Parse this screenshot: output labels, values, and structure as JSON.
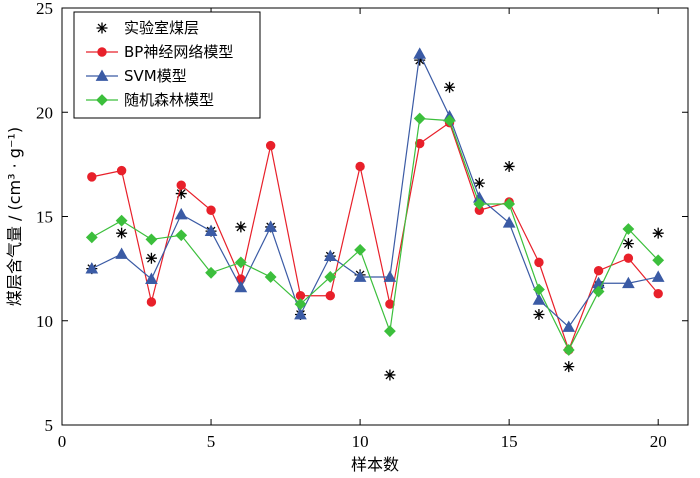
{
  "chart_data": {
    "type": "line",
    "xlabel": "样本数",
    "ylabel": "煤层含气量 / (cm³ · g⁻¹)",
    "xlim": [
      0,
      21
    ],
    "ylim": [
      5,
      25
    ],
    "xticks": [
      0,
      5,
      10,
      15,
      20
    ],
    "yticks": [
      5,
      10,
      15,
      20,
      25
    ],
    "xtick_labels": [
      "0",
      "5",
      "10",
      "15",
      "20"
    ],
    "ytick_labels": [
      "5",
      "10",
      "15",
      "20",
      "25"
    ],
    "grid": false,
    "legend_position": "top-left",
    "x": [
      1,
      2,
      3,
      4,
      5,
      6,
      7,
      8,
      9,
      10,
      11,
      12,
      13,
      14,
      15,
      16,
      17,
      18,
      19,
      20
    ],
    "series": [
      {
        "name": "实验室煤层",
        "style": "markers-only",
        "marker": "asterisk",
        "color": "#000000",
        "values": [
          12.5,
          14.2,
          13.0,
          16.1,
          14.3,
          14.5,
          14.5,
          10.3,
          13.1,
          12.2,
          7.4,
          22.5,
          21.2,
          16.6,
          17.4,
          10.3,
          7.8,
          11.7,
          13.7,
          14.2
        ]
      },
      {
        "name": "BP神经网络模型",
        "style": "line",
        "marker": "circle",
        "color": "#e8202a",
        "values": [
          16.9,
          17.2,
          10.9,
          16.5,
          15.3,
          12.0,
          18.4,
          11.2,
          11.2,
          17.4,
          10.8,
          18.5,
          19.5,
          15.3,
          15.7,
          12.8,
          8.6,
          12.4,
          13.0,
          11.3
        ]
      },
      {
        "name": "SVM模型",
        "style": "line",
        "marker": "triangle",
        "color": "#3b5ba5",
        "values": [
          12.5,
          13.2,
          12.0,
          15.1,
          14.3,
          11.6,
          14.5,
          10.3,
          13.1,
          12.1,
          12.1,
          22.8,
          19.8,
          15.9,
          14.7,
          11.0,
          9.7,
          11.8,
          11.8,
          12.1
        ]
      },
      {
        "name": "随机森林模型",
        "style": "line",
        "marker": "diamond",
        "color": "#3cbf3c",
        "values": [
          14.0,
          14.8,
          13.9,
          14.1,
          12.3,
          12.8,
          12.1,
          10.8,
          12.1,
          13.4,
          9.5,
          19.7,
          19.6,
          15.6,
          15.6,
          11.5,
          8.6,
          11.4,
          14.4,
          12.9
        ]
      }
    ]
  }
}
